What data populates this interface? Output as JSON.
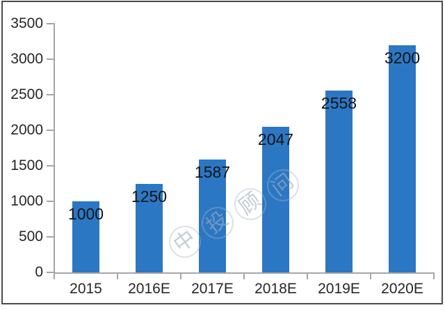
{
  "chart_data": {
    "type": "bar",
    "title": "",
    "xlabel": "",
    "ylabel": "",
    "categories": [
      "2015",
      "2016E",
      "2017E",
      "2018E",
      "2019E",
      "2020E"
    ],
    "values": [
      1000,
      1250,
      1587,
      2047,
      2558,
      3200
    ],
    "data_labels": [
      "1000",
      "1250",
      "1587",
      "2047",
      "2558",
      "3200"
    ],
    "data_label_position": "inside-top",
    "ylim": [
      0,
      3500
    ],
    "ytick_step": 500,
    "yticks": [
      "3500",
      "3000",
      "2500",
      "2000",
      "1500",
      "1000",
      "500",
      "0"
    ],
    "grid": false,
    "legend_position": "none",
    "bar_color": "#2b77c4",
    "axis_line_color": "#a6a6a6",
    "axis_label_color": "#262626",
    "data_label_color": "#141414"
  },
  "watermark": {
    "text": "中投顾问",
    "chars": [
      "中",
      "投",
      "顾",
      "问"
    ],
    "color": "#a8b2c2"
  },
  "frame": {
    "border_color": "#4a4a4a",
    "background": "#ffffff"
  }
}
